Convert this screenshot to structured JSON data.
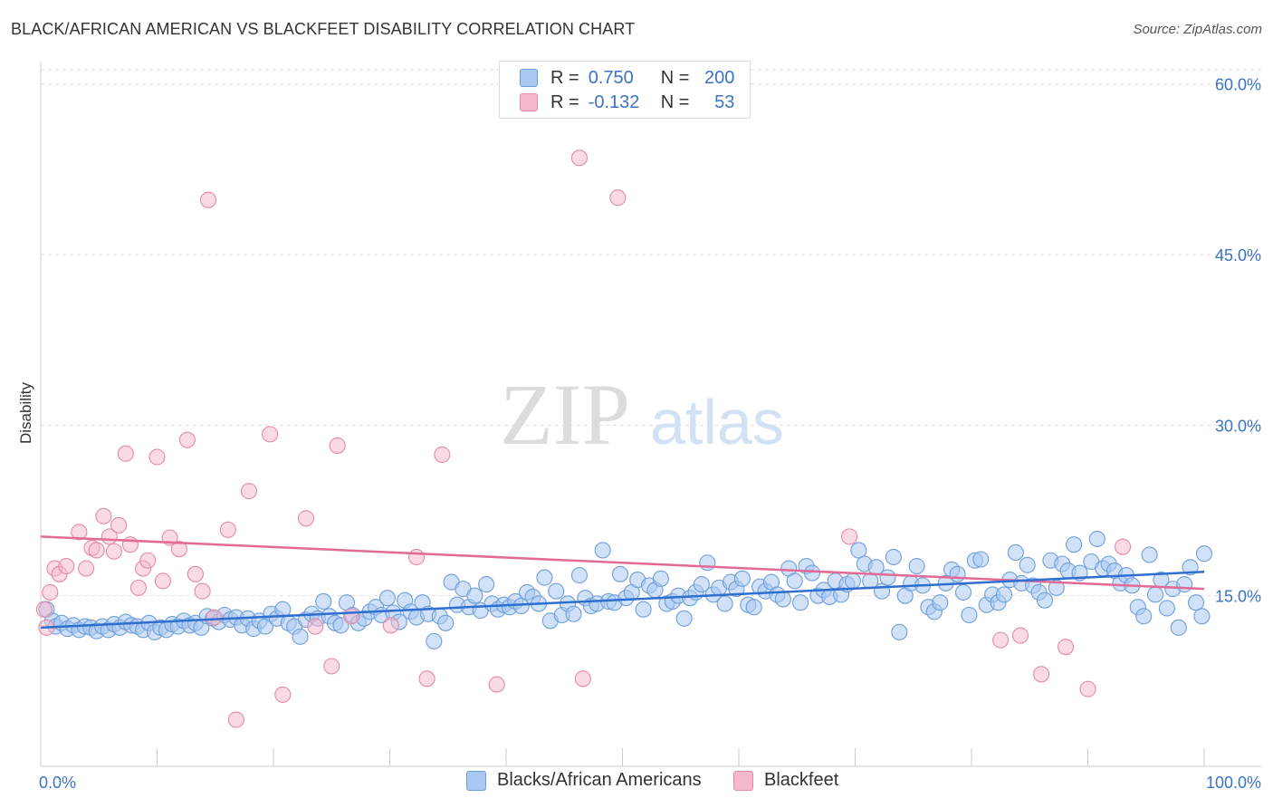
{
  "title": "BLACK/AFRICAN AMERICAN VS BLACKFEET DISABILITY CORRELATION CHART",
  "source": "Source: ZipAtlas.com",
  "watermark": {
    "zip": "ZIP",
    "atlas": "atlas"
  },
  "legend": {
    "row1": {
      "r_label": "R =",
      "r_value": "0.750",
      "n_label": "N =",
      "n_value": "200"
    },
    "row2": {
      "r_label": "R =",
      "r_value": "-0.132",
      "n_label": "N =",
      "n_value": "53"
    }
  },
  "bottom_legend": {
    "series1": "Blacks/African Americans",
    "series2": "Blackfeet"
  },
  "colors": {
    "blue_fill": "#a9c9f2",
    "blue_stroke": "#6f9fd8",
    "blue_line": "#2f6fd0",
    "pink_fill": "#f6b8cb",
    "pink_stroke": "#e58aa6",
    "pink_line": "#e26a96",
    "axis_label": "#3b74c4"
  },
  "chart_data": {
    "type": "scatter",
    "title": "BLACK/AFRICAN AMERICAN VS BLACKFEET DISABILITY CORRELATION CHART",
    "xlabel": "",
    "ylabel": "Disability",
    "xlim": [
      0,
      100
    ],
    "ylim": [
      0,
      63
    ],
    "x_tick_labels": [
      "0.0%",
      "100.0%"
    ],
    "y_ticks": [
      15,
      30,
      45,
      60
    ],
    "y_tick_labels": [
      "15.0%",
      "30.0%",
      "45.0%",
      "60.0%"
    ],
    "grid": true,
    "legend_position": "top-center",
    "series": [
      {
        "name": "Blacks/African Americans",
        "R": 0.75,
        "N": 200,
        "trend": {
          "x": [
            0,
            100
          ],
          "y": [
            12.2,
            17.1
          ]
        },
        "points": [
          [
            0.5,
            13.8
          ],
          [
            1,
            12.8
          ],
          [
            1.3,
            12.3
          ],
          [
            1.8,
            12.6
          ],
          [
            2.3,
            12.1
          ],
          [
            2.8,
            12.4
          ],
          [
            3.3,
            12.0
          ],
          [
            3.8,
            12.3
          ],
          [
            4.3,
            12.2
          ],
          [
            4.8,
            11.9
          ],
          [
            5.3,
            12.3
          ],
          [
            5.8,
            12.0
          ],
          [
            6.3,
            12.5
          ],
          [
            6.8,
            12.2
          ],
          [
            7.3,
            12.7
          ],
          [
            7.8,
            12.4
          ],
          [
            8.3,
            12.3
          ],
          [
            8.8,
            12.0
          ],
          [
            9.3,
            12.6
          ],
          [
            9.8,
            11.8
          ],
          [
            10.3,
            12.2
          ],
          [
            10.8,
            12.0
          ],
          [
            11.3,
            12.5
          ],
          [
            11.8,
            12.3
          ],
          [
            12.3,
            12.8
          ],
          [
            12.8,
            12.4
          ],
          [
            13.3,
            12.6
          ],
          [
            13.8,
            12.2
          ],
          [
            14.3,
            13.2
          ],
          [
            14.8,
            13.0
          ],
          [
            15.3,
            12.7
          ],
          [
            15.8,
            13.3
          ],
          [
            16.3,
            12.9
          ],
          [
            16.8,
            13.1
          ],
          [
            17.3,
            12.4
          ],
          [
            17.8,
            13.0
          ],
          [
            18.3,
            12.1
          ],
          [
            18.8,
            12.8
          ],
          [
            19.3,
            12.3
          ],
          [
            19.8,
            13.4
          ],
          [
            20.3,
            13.0
          ],
          [
            20.8,
            13.8
          ],
          [
            21.3,
            12.6
          ],
          [
            21.8,
            12.3
          ],
          [
            22.3,
            11.4
          ],
          [
            22.8,
            12.9
          ],
          [
            23.3,
            13.4
          ],
          [
            23.8,
            13.0
          ],
          [
            24.3,
            14.5
          ],
          [
            24.8,
            13.2
          ],
          [
            25.3,
            12.6
          ],
          [
            25.8,
            12.4
          ],
          [
            26.3,
            14.4
          ],
          [
            26.8,
            13.3
          ],
          [
            27.3,
            12.6
          ],
          [
            27.8,
            13.0
          ],
          [
            28.3,
            13.6
          ],
          [
            28.8,
            14.0
          ],
          [
            29.3,
            13.3
          ],
          [
            29.8,
            14.8
          ],
          [
            30.3,
            13.5
          ],
          [
            30.8,
            12.7
          ],
          [
            31.3,
            14.6
          ],
          [
            31.8,
            13.6
          ],
          [
            32.3,
            13.1
          ],
          [
            32.8,
            14.4
          ],
          [
            33.3,
            13.4
          ],
          [
            33.8,
            11.0
          ],
          [
            34.3,
            13.2
          ],
          [
            34.8,
            12.6
          ],
          [
            35.3,
            16.2
          ],
          [
            35.8,
            14.2
          ],
          [
            36.3,
            15.6
          ],
          [
            36.8,
            14.0
          ],
          [
            37.3,
            15.0
          ],
          [
            37.8,
            13.7
          ],
          [
            38.3,
            16.0
          ],
          [
            38.8,
            14.3
          ],
          [
            39.3,
            13.8
          ],
          [
            39.8,
            14.2
          ],
          [
            40.3,
            14.0
          ],
          [
            40.8,
            14.5
          ],
          [
            41.3,
            14.1
          ],
          [
            41.8,
            15.3
          ],
          [
            42.3,
            14.9
          ],
          [
            42.8,
            14.3
          ],
          [
            43.3,
            16.6
          ],
          [
            43.8,
            12.8
          ],
          [
            44.3,
            15.4
          ],
          [
            44.8,
            13.3
          ],
          [
            45.3,
            14.3
          ],
          [
            45.8,
            13.4
          ],
          [
            46.3,
            16.8
          ],
          [
            46.8,
            14.8
          ],
          [
            47.3,
            14.1
          ],
          [
            47.8,
            14.3
          ],
          [
            48.3,
            19.0
          ],
          [
            48.8,
            14.5
          ],
          [
            49.3,
            14.4
          ],
          [
            49.8,
            16.9
          ],
          [
            50.3,
            14.8
          ],
          [
            50.8,
            15.3
          ],
          [
            51.3,
            16.4
          ],
          [
            51.8,
            13.8
          ],
          [
            52.3,
            15.9
          ],
          [
            52.8,
            15.5
          ],
          [
            53.3,
            16.5
          ],
          [
            53.8,
            14.3
          ],
          [
            54.3,
            14.5
          ],
          [
            54.8,
            15.0
          ],
          [
            55.3,
            13.0
          ],
          [
            55.8,
            14.8
          ],
          [
            56.3,
            15.3
          ],
          [
            56.8,
            16.0
          ],
          [
            57.3,
            17.9
          ],
          [
            57.8,
            15.1
          ],
          [
            58.3,
            15.7
          ],
          [
            58.8,
            14.3
          ],
          [
            59.3,
            16.2
          ],
          [
            59.8,
            15.6
          ],
          [
            60.3,
            16.5
          ],
          [
            60.8,
            14.2
          ],
          [
            61.3,
            14.0
          ],
          [
            61.8,
            15.8
          ],
          [
            62.3,
            15.4
          ],
          [
            62.8,
            16.2
          ],
          [
            63.3,
            15.1
          ],
          [
            63.8,
            14.7
          ],
          [
            64.3,
            17.4
          ],
          [
            64.8,
            16.3
          ],
          [
            65.3,
            14.4
          ],
          [
            65.8,
            17.6
          ],
          [
            66.3,
            17.0
          ],
          [
            66.8,
            15.0
          ],
          [
            67.3,
            15.5
          ],
          [
            67.8,
            14.9
          ],
          [
            68.3,
            16.3
          ],
          [
            68.8,
            15.1
          ],
          [
            69.3,
            16.0
          ],
          [
            69.8,
            16.3
          ],
          [
            70.3,
            19.0
          ],
          [
            70.8,
            17.8
          ],
          [
            71.3,
            16.3
          ],
          [
            71.8,
            17.5
          ],
          [
            72.3,
            15.4
          ],
          [
            72.8,
            16.6
          ],
          [
            73.3,
            18.4
          ],
          [
            73.8,
            11.8
          ],
          [
            74.3,
            15.0
          ],
          [
            74.8,
            16.1
          ],
          [
            75.3,
            17.6
          ],
          [
            75.8,
            15.9
          ],
          [
            76.3,
            14.0
          ],
          [
            76.8,
            13.6
          ],
          [
            77.3,
            14.4
          ],
          [
            77.8,
            16.1
          ],
          [
            78.3,
            17.3
          ],
          [
            78.8,
            16.9
          ],
          [
            79.3,
            15.3
          ],
          [
            79.8,
            13.3
          ],
          [
            80.3,
            18.1
          ],
          [
            80.8,
            18.2
          ],
          [
            81.3,
            14.2
          ],
          [
            81.8,
            15.1
          ],
          [
            82.3,
            14.4
          ],
          [
            82.8,
            15.1
          ],
          [
            83.3,
            16.4
          ],
          [
            83.8,
            18.8
          ],
          [
            84.3,
            16.1
          ],
          [
            84.8,
            17.7
          ],
          [
            85.3,
            15.9
          ],
          [
            85.8,
            15.3
          ],
          [
            86.3,
            14.6
          ],
          [
            86.8,
            18.1
          ],
          [
            87.3,
            15.7
          ],
          [
            87.8,
            17.8
          ],
          [
            88.3,
            17.2
          ],
          [
            88.8,
            19.5
          ],
          [
            89.3,
            17.0
          ],
          [
            90.3,
            18.0
          ],
          [
            90.8,
            20.0
          ],
          [
            91.3,
            17.4
          ],
          [
            91.8,
            17.8
          ],
          [
            92.3,
            17.2
          ],
          [
            92.8,
            16.1
          ],
          [
            93.3,
            16.8
          ],
          [
            93.8,
            15.9
          ],
          [
            94.3,
            14.0
          ],
          [
            94.8,
            13.2
          ],
          [
            95.3,
            18.6
          ],
          [
            95.8,
            15.1
          ],
          [
            96.3,
            16.4
          ],
          [
            96.8,
            13.9
          ],
          [
            97.3,
            15.6
          ],
          [
            97.8,
            12.2
          ],
          [
            98.3,
            16.0
          ],
          [
            98.8,
            17.5
          ],
          [
            99.3,
            14.4
          ],
          [
            99.8,
            13.2
          ],
          [
            100,
            18.7
          ]
        ]
      },
      {
        "name": "Blackfeet",
        "R": -0.132,
        "N": 53,
        "trend": {
          "x": [
            0,
            100
          ],
          "y": [
            20.2,
            15.6
          ]
        },
        "points": [
          [
            0.3,
            13.8
          ],
          [
            0.5,
            12.2
          ],
          [
            0.8,
            15.3
          ],
          [
            1.2,
            17.4
          ],
          [
            1.6,
            16.9
          ],
          [
            2.2,
            17.6
          ],
          [
            3.3,
            20.6
          ],
          [
            3.9,
            17.4
          ],
          [
            4.4,
            19.2
          ],
          [
            4.8,
            19.0
          ],
          [
            5.4,
            22.0
          ],
          [
            5.9,
            20.2
          ],
          [
            6.3,
            18.9
          ],
          [
            6.7,
            21.2
          ],
          [
            7.3,
            27.5
          ],
          [
            7.7,
            19.5
          ],
          [
            8.4,
            15.7
          ],
          [
            8.8,
            17.4
          ],
          [
            9.2,
            18.1
          ],
          [
            10.0,
            27.2
          ],
          [
            10.5,
            16.3
          ],
          [
            11.1,
            20.1
          ],
          [
            11.9,
            19.1
          ],
          [
            12.6,
            28.7
          ],
          [
            13.3,
            16.9
          ],
          [
            13.9,
            15.4
          ],
          [
            14.4,
            49.8
          ],
          [
            14.9,
            13.1
          ],
          [
            16.1,
            20.8
          ],
          [
            16.8,
            4.1
          ],
          [
            17.9,
            24.2
          ],
          [
            19.7,
            29.2
          ],
          [
            20.8,
            6.3
          ],
          [
            22.8,
            21.8
          ],
          [
            23.6,
            12.3
          ],
          [
            25.0,
            8.8
          ],
          [
            25.5,
            28.2
          ],
          [
            26.7,
            13.2
          ],
          [
            30.1,
            12.4
          ],
          [
            32.3,
            18.4
          ],
          [
            33.2,
            7.7
          ],
          [
            34.5,
            27.4
          ],
          [
            39.2,
            7.2
          ],
          [
            46.3,
            53.5
          ],
          [
            46.6,
            7.7
          ],
          [
            49.6,
            50.0
          ],
          [
            69.5,
            20.2
          ],
          [
            82.5,
            11.1
          ],
          [
            84.2,
            11.5
          ],
          [
            86.0,
            8.1
          ],
          [
            88.1,
            10.5
          ],
          [
            90.0,
            6.8
          ],
          [
            93.0,
            19.3
          ]
        ]
      }
    ]
  }
}
